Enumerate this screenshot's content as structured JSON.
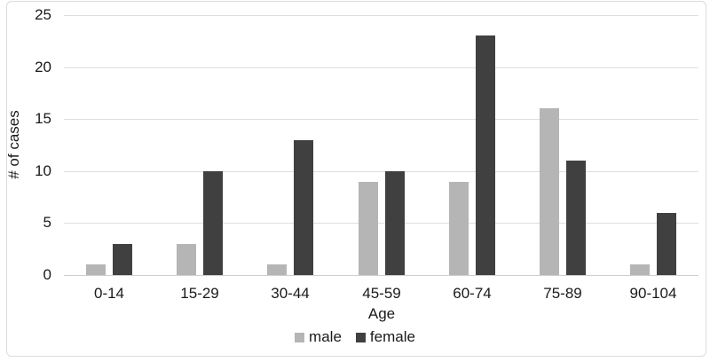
{
  "chart_data": {
    "type": "bar",
    "title": "",
    "categories": [
      "0-14",
      "15-29",
      "30-44",
      "45-59",
      "60-74",
      "75-89",
      "90-104"
    ],
    "series": [
      {
        "name": "male",
        "color": "#b5b5b5",
        "values": [
          1,
          3,
          1,
          9,
          9,
          16,
          1
        ]
      },
      {
        "name": "female",
        "color": "#404040",
        "values": [
          3,
          10,
          13,
          10,
          23,
          11,
          6
        ]
      }
    ],
    "xlabel": "Age",
    "ylabel": "# of cases",
    "ylim": [
      0,
      25
    ],
    "yticks": [
      0,
      5,
      10,
      15,
      20,
      25
    ],
    "grid": true,
    "legend_position": "bottom",
    "gridline_color": "#dedede",
    "axis_line_color": "#cfcfcf",
    "text_color": "#1a1a1a"
  }
}
